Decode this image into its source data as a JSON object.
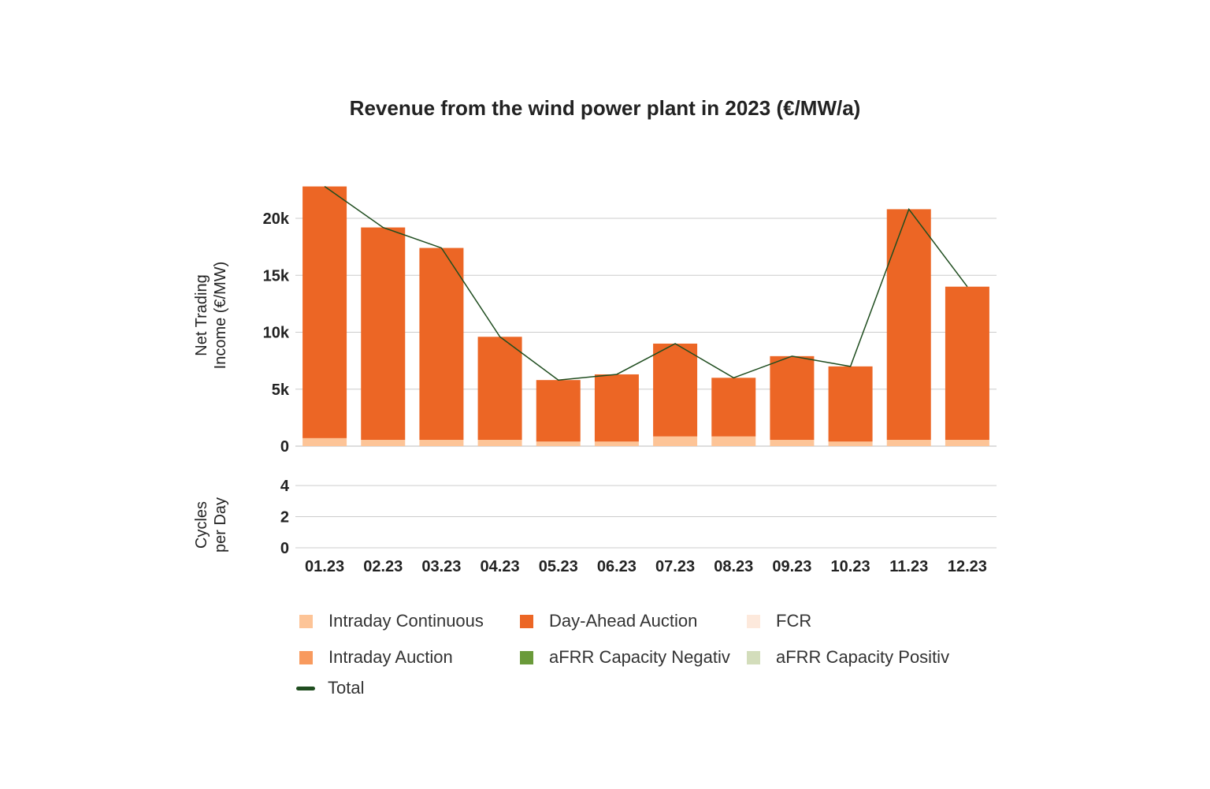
{
  "chart_data": {
    "type": "bar",
    "stacked": true,
    "title": "Revenue from the wind power plant in 2023 (€/MW/a)",
    "ylabel": "Net Trading Income (€/MW)",
    "ylabel_lines": [
      "Net Trading",
      "Income (€/MW)"
    ],
    "ylim": [
      0,
      23000
    ],
    "yticks": [
      0,
      5000,
      10000,
      15000,
      20000
    ],
    "ytick_labels": [
      "0",
      "5k",
      "10k",
      "15k",
      "20k"
    ],
    "y2label_lines": [
      "Cycles",
      "per Day"
    ],
    "y2ticks": [
      "0",
      "2",
      "4"
    ],
    "y2lim": [
      0,
      4
    ],
    "categories": [
      "01.23",
      "02.23",
      "03.23",
      "04.23",
      "05.23",
      "06.23",
      "07.23",
      "08.23",
      "09.23",
      "10.23",
      "11.23",
      "12.23"
    ],
    "series": [
      {
        "name": "Intraday Continuous",
        "color": "#FDC497",
        "values": [
          700,
          550,
          550,
          550,
          400,
          400,
          850,
          850,
          550,
          400,
          550,
          550
        ]
      },
      {
        "name": "Intraday Auction",
        "color": "#F89A5E",
        "values": [
          0,
          0,
          0,
          0,
          0,
          0,
          0,
          0,
          0,
          0,
          0,
          0
        ]
      },
      {
        "name": "Day-Ahead Auction",
        "color": "#EC6625",
        "values": [
          22100,
          18650,
          16850,
          9050,
          5400,
          5900,
          8150,
          5150,
          7350,
          6600,
          20250,
          13450
        ]
      },
      {
        "name": "FCR",
        "color": "#FDE9DC",
        "values": [
          0,
          0,
          0,
          0,
          0,
          0,
          0,
          0,
          0,
          0,
          0,
          0
        ]
      },
      {
        "name": "aFRR Capacity Negativ",
        "color": "#6A9A3A",
        "values": [
          0,
          0,
          0,
          0,
          0,
          0,
          0,
          0,
          0,
          0,
          0,
          0
        ]
      },
      {
        "name": "aFRR Capacity Positiv",
        "color": "#D3DDBB",
        "values": [
          0,
          0,
          0,
          0,
          0,
          0,
          0,
          0,
          0,
          0,
          0,
          0
        ]
      }
    ],
    "total": {
      "name": "Total",
      "color": "#1F4D1F",
      "values": [
        22800,
        19200,
        17400,
        9600,
        5800,
        6300,
        9000,
        6000,
        7900,
        7000,
        20800,
        14000
      ]
    },
    "grid": true,
    "legend_position": "bottom"
  }
}
